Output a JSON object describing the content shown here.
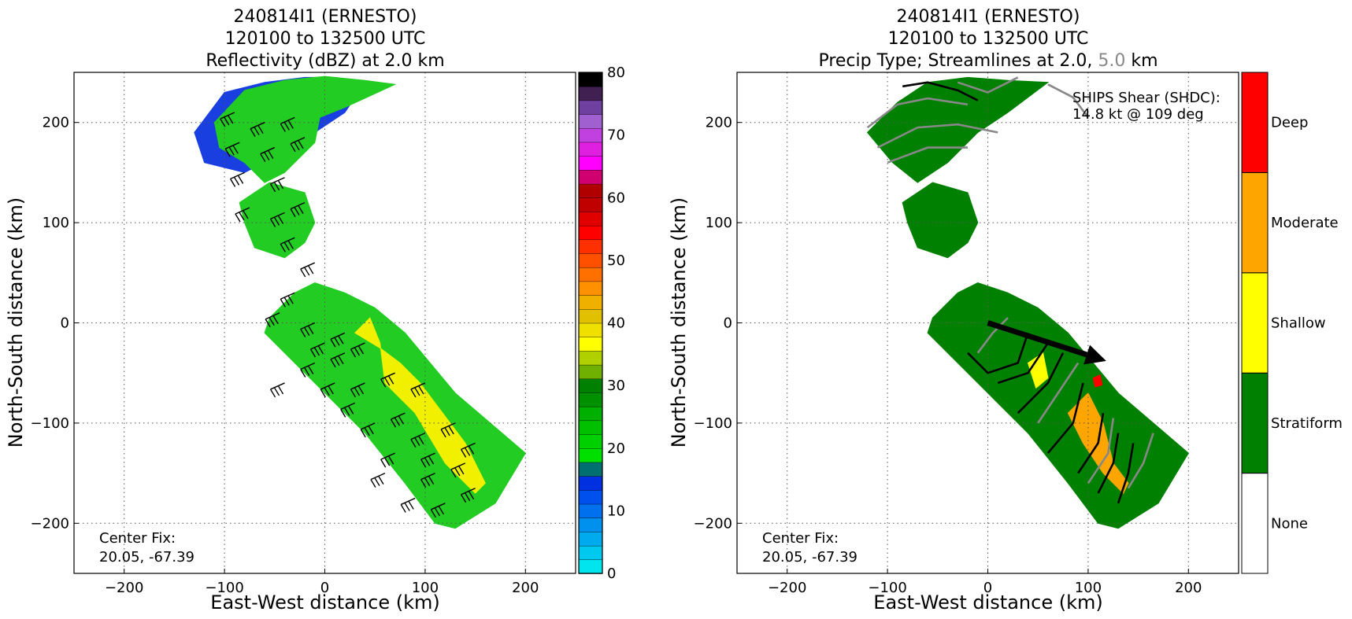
{
  "chart_data": [
    {
      "type": "heatmap",
      "title_lines": [
        "240814I1 (ERNESTO)",
        "120100 to 132500 UTC",
        "Reflectivity (dBZ) at 2.0 km"
      ],
      "xlabel": "East-West distance (km)",
      "ylabel": "North-South distance (km)",
      "xlim": [
        -250,
        250
      ],
      "ylim": [
        -250,
        250
      ],
      "x_ticks": [
        -200,
        -100,
        0,
        100,
        200
      ],
      "y_ticks": [
        -200,
        -100,
        0,
        100,
        200
      ],
      "x_tick_labels": [
        "−200",
        "−100",
        "0",
        "100",
        "200"
      ],
      "y_tick_labels": [
        "−200",
        "−100",
        "0",
        "100",
        "200"
      ],
      "grid": true,
      "annotation": {
        "line1": "Center Fix:",
        "line2": "20.05, -67.39"
      },
      "colorbar": {
        "min": 0,
        "max": 80,
        "tick_values": [
          0,
          10,
          20,
          30,
          40,
          50,
          60,
          70,
          80
        ],
        "tick_labels": [
          "0",
          "10",
          "20",
          "30",
          "40",
          "50",
          "60",
          "70",
          "80"
        ],
        "colors": [
          "#00e5ee",
          "#00c8ee",
          "#00aaee",
          "#0090ee",
          "#0070ee",
          "#0050ee",
          "#0030e0",
          "#007070",
          "#00e000",
          "#00d000",
          "#00c000",
          "#00b000",
          "#009000",
          "#008000",
          "#70b000",
          "#b0d000",
          "#ffff00",
          "#f0e000",
          "#e0c000",
          "#f0b000",
          "#ff9000",
          "#ff7000",
          "#ff5000",
          "#ff3000",
          "#ff0000",
          "#e00000",
          "#c00000",
          "#b00000",
          "#d00070",
          "#ff00ff",
          "#e020e0",
          "#c040e0",
          "#a060d0",
          "#7040a0",
          "#402050",
          "#000000"
        ]
      },
      "echo_regions": [
        {
          "level": "weak",
          "color": "#1a3fe0",
          "points": [
            [
              -100,
              230
            ],
            [
              -60,
              240
            ],
            [
              -20,
              245
            ],
            [
              10,
              245
            ],
            [
              40,
              240
            ],
            [
              20,
              210
            ],
            [
              -10,
              190
            ],
            [
              -40,
              170
            ],
            [
              -80,
              150
            ],
            [
              -120,
              160
            ],
            [
              -130,
              190
            ]
          ]
        },
        {
          "level": "light",
          "color": "#22cc22",
          "points": [
            [
              -110,
              200
            ],
            [
              -80,
              232
            ],
            [
              -40,
              242
            ],
            [
              0,
              246
            ],
            [
              40,
              242
            ],
            [
              70,
              238
            ],
            [
              20,
              215
            ],
            [
              -5,
              205
            ],
            [
              -10,
              180
            ],
            [
              -40,
              150
            ],
            [
              -60,
              140
            ],
            [
              -80,
              160
            ],
            [
              -105,
              175
            ]
          ]
        },
        {
          "level": "light",
          "color": "#22cc22",
          "points": [
            [
              -85,
              120
            ],
            [
              -55,
              140
            ],
            [
              -20,
              130
            ],
            [
              -10,
              100
            ],
            [
              -20,
              80
            ],
            [
              -40,
              65
            ],
            [
              -70,
              75
            ],
            [
              -80,
              100
            ]
          ]
        },
        {
          "level": "light",
          "color": "#22cc22",
          "points": [
            [
              -55,
              5
            ],
            [
              -30,
              30
            ],
            [
              -10,
              40
            ],
            [
              20,
              30
            ],
            [
              50,
              15
            ],
            [
              80,
              -10
            ],
            [
              130,
              -70
            ],
            [
              200,
              -130
            ],
            [
              170,
              -180
            ],
            [
              130,
              -205
            ],
            [
              110,
              -200
            ],
            [
              80,
              -160
            ],
            [
              40,
              -110
            ],
            [
              20,
              -90
            ],
            [
              -10,
              -60
            ],
            [
              -40,
              -30
            ],
            [
              -60,
              -10
            ]
          ]
        },
        {
          "level": "moderate",
          "color": "#f0f000",
          "points": [
            [
              30,
              -10
            ],
            [
              45,
              5
            ],
            [
              55,
              -20
            ],
            [
              60,
              -60
            ],
            [
              90,
              -90
            ],
            [
              120,
              -140
            ],
            [
              150,
              -170
            ],
            [
              160,
              -160
            ],
            [
              140,
              -120
            ],
            [
              110,
              -80
            ],
            [
              95,
              -60
            ],
            [
              75,
              -40
            ],
            [
              55,
              -25
            ]
          ]
        }
      ],
      "wind_barbs_present": true
    },
    {
      "type": "heatmap",
      "title_lines": [
        "240814I1 (ERNESTO)",
        "120100 to 132500 UTC"
      ],
      "title_line3": {
        "prefix": "Precip Type; Streamlines at 2.0, ",
        "highlight": "5.0",
        "suffix": " km",
        "highlight_color": "#888888"
      },
      "xlabel": "East-West distance (km)",
      "ylabel": "North-South distance (km)",
      "xlim": [
        -250,
        250
      ],
      "ylim": [
        -250,
        250
      ],
      "x_ticks": [
        -200,
        -100,
        0,
        100,
        200
      ],
      "y_ticks": [
        -200,
        -100,
        0,
        100,
        200
      ],
      "x_tick_labels": [
        "−200",
        "−100",
        "0",
        "100",
        "200"
      ],
      "y_tick_labels": [
        "−200",
        "−100",
        "0",
        "100",
        "200"
      ],
      "grid": true,
      "annotation": {
        "line1": "Center Fix:",
        "line2": "20.05, -67.39"
      },
      "shear_label": {
        "line1": "SHIPS Shear (SHDC):",
        "line2": "14.8 kt @ 109 deg"
      },
      "shear_arrow": {
        "from": [
          0,
          0
        ],
        "to": [
          118,
          -38
        ],
        "speed_kt": 14.8,
        "direction_deg": 109
      },
      "categories": [
        "None",
        "Stratiform",
        "Shallow",
        "Moderate",
        "Deep"
      ],
      "category_colors": [
        "#ffffff",
        "#008000",
        "#ffff00",
        "#ffa500",
        "#ff0000"
      ],
      "echo_regions": [
        {
          "category": "Stratiform",
          "color": "#008000",
          "points": [
            [
              -120,
              190
            ],
            [
              -90,
              220
            ],
            [
              -60,
              240
            ],
            [
              -20,
              245
            ],
            [
              20,
              242
            ],
            [
              60,
              240
            ],
            [
              20,
              210
            ],
            [
              -10,
              190
            ],
            [
              -40,
              160
            ],
            [
              -70,
              140
            ],
            [
              -95,
              160
            ]
          ]
        },
        {
          "category": "Stratiform",
          "color": "#008000",
          "points": [
            [
              -85,
              120
            ],
            [
              -55,
              140
            ],
            [
              -20,
              130
            ],
            [
              -10,
              100
            ],
            [
              -20,
              80
            ],
            [
              -40,
              65
            ],
            [
              -70,
              75
            ],
            [
              -80,
              100
            ]
          ]
        },
        {
          "category": "Stratiform",
          "color": "#008000",
          "points": [
            [
              -55,
              5
            ],
            [
              -30,
              30
            ],
            [
              -10,
              40
            ],
            [
              20,
              30
            ],
            [
              50,
              15
            ],
            [
              80,
              -10
            ],
            [
              130,
              -70
            ],
            [
              200,
              -130
            ],
            [
              170,
              -180
            ],
            [
              130,
              -205
            ],
            [
              110,
              -200
            ],
            [
              80,
              -160
            ],
            [
              40,
              -110
            ],
            [
              20,
              -90
            ],
            [
              -10,
              -60
            ],
            [
              -40,
              -30
            ],
            [
              -60,
              -10
            ]
          ]
        },
        {
          "category": "Moderate",
          "color": "#ffa500",
          "points": [
            [
              80,
              -90
            ],
            [
              100,
              -70
            ],
            [
              115,
              -100
            ],
            [
              125,
              -140
            ],
            [
              140,
              -160
            ],
            [
              135,
              -170
            ],
            [
              115,
              -150
            ],
            [
              95,
              -120
            ]
          ]
        },
        {
          "category": "Shallow",
          "color": "#ffff00",
          "points": [
            [
              40,
              -40
            ],
            [
              55,
              -30
            ],
            [
              60,
              -55
            ],
            [
              48,
              -65
            ]
          ]
        },
        {
          "category": "Deep",
          "color": "#ff0000",
          "points": [
            [
              105,
              -55
            ],
            [
              112,
              -52
            ],
            [
              114,
              -62
            ],
            [
              107,
              -64
            ]
          ]
        }
      ],
      "streamline_levels": [
        {
          "level": "2.0",
          "color": "#000000"
        },
        {
          "level": "5.0",
          "color": "#888888"
        }
      ]
    }
  ]
}
